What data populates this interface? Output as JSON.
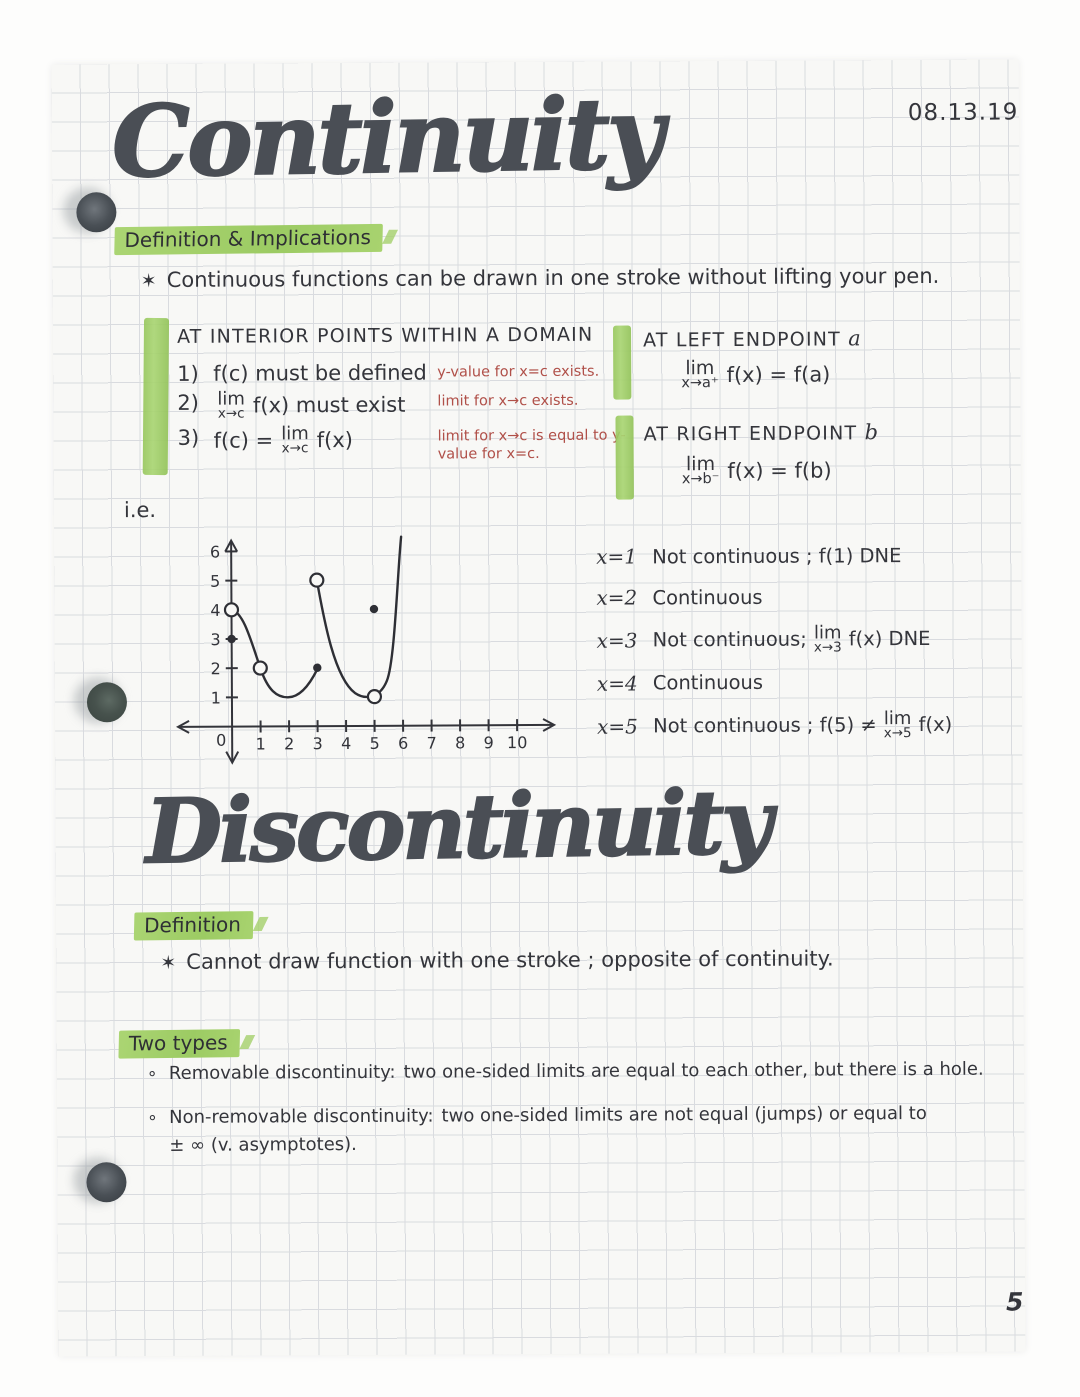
{
  "page": {
    "date": "08.13.19",
    "page_number": "5"
  },
  "glyphs": {
    "star": "✶",
    "bullet": "∘",
    "lim_word": "lim"
  },
  "continuity": {
    "title": "Continuity",
    "section_label": "Definition & Implications",
    "definition": "Continuous functions can be drawn in one stroke without lifting your pen.",
    "interior": {
      "heading": "AT INTERIOR POINTS WITHIN A DOMAIN",
      "conditions": [
        {
          "num": "1)",
          "segments": [
            {
              "t": "text",
              "v": "f(c) must be defined"
            }
          ],
          "note": "y-value for x=c exists."
        },
        {
          "num": "2)",
          "segments": [
            {
              "t": "lim",
              "v": "x→c"
            },
            {
              "t": "text",
              "v": "f(x) must exist"
            }
          ],
          "note": "limit for x→c exists."
        },
        {
          "num": "3)",
          "segments": [
            {
              "t": "text",
              "v": "f(c) ="
            },
            {
              "t": "lim",
              "v": "x→c"
            },
            {
              "t": "text",
              "v": "f(x)"
            }
          ],
          "note": "limit for x→c is equal to y-value for x=c."
        }
      ]
    },
    "left_endpoint": {
      "heading": "AT LEFT ENDPOINT",
      "var": "a",
      "formula": [
        {
          "t": "lim",
          "v": "x→a⁺"
        },
        {
          "t": "text",
          "v": "f(x) = f(a)"
        }
      ]
    },
    "right_endpoint": {
      "heading": "AT RIGHT ENDPOINT",
      "var": "b",
      "formula": [
        {
          "t": "lim",
          "v": "x→b⁻"
        },
        {
          "t": "text",
          "v": "f(x) = f(b)"
        }
      ]
    },
    "ie_label": "i.e.",
    "examples": [
      {
        "x": "x=1",
        "segments": [
          {
            "t": "text",
            "v": "Not continuous ; f(1) DNE"
          }
        ]
      },
      {
        "x": "x=2",
        "segments": [
          {
            "t": "text",
            "v": "Continuous"
          }
        ]
      },
      {
        "x": "x=3",
        "segments": [
          {
            "t": "text",
            "v": "Not continuous;"
          },
          {
            "t": "lim",
            "v": "x→3"
          },
          {
            "t": "text",
            "v": "f(x) DNE"
          }
        ]
      },
      {
        "x": "x=4",
        "segments": [
          {
            "t": "text",
            "v": "Continuous"
          }
        ]
      },
      {
        "x": "x=5",
        "segments": [
          {
            "t": "text",
            "v": "Not continuous ; f(5) ≠"
          },
          {
            "t": "lim",
            "v": "x→5"
          },
          {
            "t": "text",
            "v": "f(x)"
          }
        ]
      }
    ]
  },
  "graph": {
    "origin_label": "0",
    "x_ticks": [
      1,
      2,
      3,
      4,
      5,
      6,
      7,
      8,
      9,
      10
    ],
    "y_ticks": [
      1,
      2,
      3,
      4,
      5,
      6
    ],
    "open_points": [
      [
        0,
        4
      ],
      [
        1,
        2
      ],
      [
        3,
        5
      ],
      [
        5,
        1
      ]
    ],
    "closed_points": [
      [
        0,
        3
      ],
      [
        3,
        2
      ],
      [
        5,
        4
      ]
    ],
    "curves": [
      "M 67 78 C 79 81 86 108 95.5 136.6 C 103 159 112 166 123 166 C 136 166 146 151 152.5 138",
      "M 152.5 49 C 159 86 169 146 190 162 C 201 169.5 215 167 222 150 C 230 131 233 45 237 6"
    ]
  },
  "discontinuity": {
    "title": "Discontinuity",
    "definition_label": "Definition",
    "definition": "Cannot draw function with one stroke ; opposite of continuity.",
    "two_types_label": "Two types",
    "types": [
      {
        "name": "Removable discontinuity:",
        "text": "two one-sided limits are equal to each other, but there is a hole."
      },
      {
        "name": "Non-removable discontinuity:",
        "text": "two one-sided limits are not equal (jumps) or equal to\n± ∞ (v. asymptotes)."
      }
    ]
  }
}
